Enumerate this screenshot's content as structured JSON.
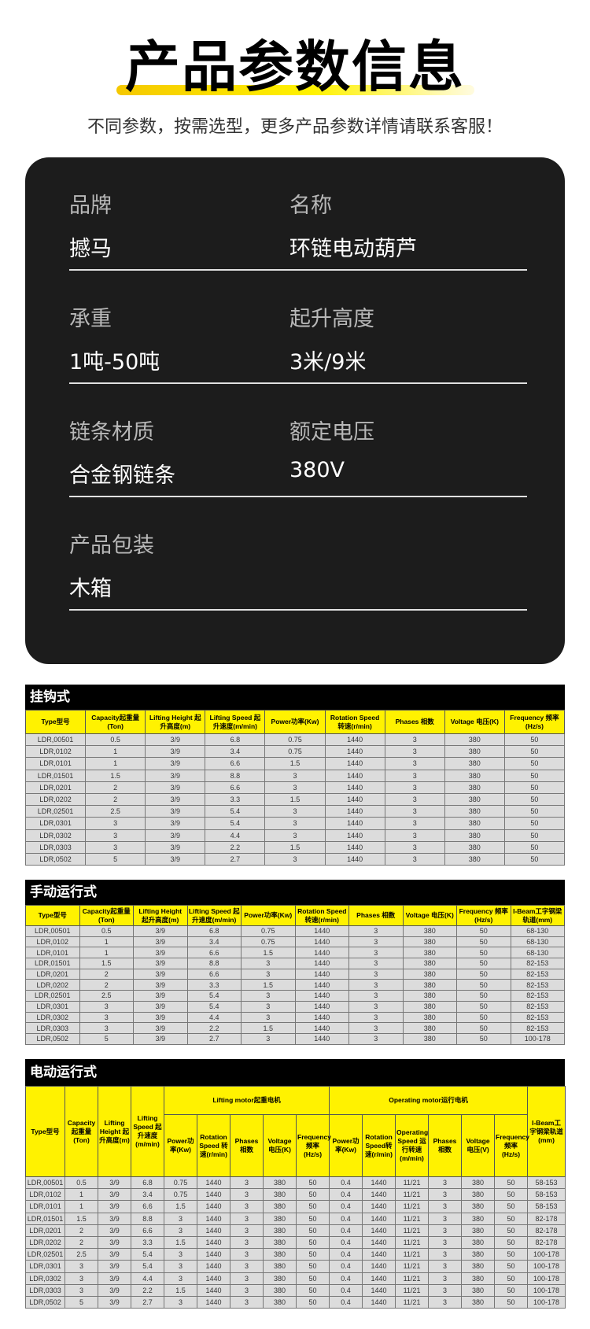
{
  "header": {
    "title": "产品参数信息",
    "subtitle": "不同参数，按需选型，更多产品参数详情请联系客服！"
  },
  "specs": [
    {
      "label": "品牌",
      "value": "撼马"
    },
    {
      "label": "名称",
      "value": "环链电动葫芦"
    },
    {
      "label": "承重",
      "value": "1吨-50吨"
    },
    {
      "label": "起升高度",
      "value": "3米/9米"
    },
    {
      "label": "链条材质",
      "value": "合金钢链条"
    },
    {
      "label": "额定电压",
      "value": "380V"
    },
    {
      "label": "产品包装",
      "value": "木箱"
    }
  ],
  "colors": {
    "accent": "#fff200",
    "card": "#1c1c1c"
  },
  "table1": {
    "title": "挂钩式",
    "headers": [
      "Type型号",
      "Capacity起重量(Ton)",
      "Lifting Height 起升高度(m)",
      "Lifting Speed 起升速度(m/min)",
      "Power功率(Kw)",
      "Rotation Speed 转速(r/min)",
      "Phases 相数",
      "Voltage 电压(K)",
      "Frequency 频率(Hz/s)"
    ],
    "rows": [
      [
        "LDR,00501",
        "0.5",
        "3/9",
        "6.8",
        "0.75",
        "1440",
        "3",
        "380",
        "50"
      ],
      [
        "LDR,0102",
        "1",
        "3/9",
        "3.4",
        "0.75",
        "1440",
        "3",
        "380",
        "50"
      ],
      [
        "LDR,0101",
        "1",
        "3/9",
        "6.6",
        "1.5",
        "1440",
        "3",
        "380",
        "50"
      ],
      [
        "LDR,01501",
        "1.5",
        "3/9",
        "8.8",
        "3",
        "1440",
        "3",
        "380",
        "50"
      ],
      [
        "LDR,0201",
        "2",
        "3/9",
        "6.6",
        "3",
        "1440",
        "3",
        "380",
        "50"
      ],
      [
        "LDR,0202",
        "2",
        "3/9",
        "3.3",
        "1.5",
        "1440",
        "3",
        "380",
        "50"
      ],
      [
        "LDR,02501",
        "2.5",
        "3/9",
        "5.4",
        "3",
        "1440",
        "3",
        "380",
        "50"
      ],
      [
        "LDR,0301",
        "3",
        "3/9",
        "5.4",
        "3",
        "1440",
        "3",
        "380",
        "50"
      ],
      [
        "LDR,0302",
        "3",
        "3/9",
        "4.4",
        "3",
        "1440",
        "3",
        "380",
        "50"
      ],
      [
        "LDR,0303",
        "3",
        "3/9",
        "2.2",
        "1.5",
        "1440",
        "3",
        "380",
        "50"
      ],
      [
        "LDR,0502",
        "5",
        "3/9",
        "2.7",
        "3",
        "1440",
        "3",
        "380",
        "50"
      ]
    ]
  },
  "table2": {
    "title": "手动运行式",
    "headers": [
      "Type型号",
      "Capacity起重量(Ton)",
      "Lifting Height 起升高度(m)",
      "Lifting Speed 起升速度(m/min)",
      "Power功率(Kw)",
      "Rotation Speed 转速(r/min)",
      "Phases 相数",
      "Voltage 电压(K)",
      "Frequency 频率(Hz/s)",
      "I-Beam工字钢梁轨道(mm)"
    ],
    "rows": [
      [
        "LDR,00501",
        "0.5",
        "3/9",
        "6.8",
        "0.75",
        "1440",
        "3",
        "380",
        "50",
        "68-130"
      ],
      [
        "LDR,0102",
        "1",
        "3/9",
        "3.4",
        "0.75",
        "1440",
        "3",
        "380",
        "50",
        "68-130"
      ],
      [
        "LDR,0101",
        "1",
        "3/9",
        "6.6",
        "1.5",
        "1440",
        "3",
        "380",
        "50",
        "68-130"
      ],
      [
        "LDR,01501",
        "1.5",
        "3/9",
        "8.8",
        "3",
        "1440",
        "3",
        "380",
        "50",
        "82-153"
      ],
      [
        "LDR,0201",
        "2",
        "3/9",
        "6.6",
        "3",
        "1440",
        "3",
        "380",
        "50",
        "82-153"
      ],
      [
        "LDR,0202",
        "2",
        "3/9",
        "3.3",
        "1.5",
        "1440",
        "3",
        "380",
        "50",
        "82-153"
      ],
      [
        "LDR,02501",
        "2.5",
        "3/9",
        "5.4",
        "3",
        "1440",
        "3",
        "380",
        "50",
        "82-153"
      ],
      [
        "LDR,0301",
        "3",
        "3/9",
        "5.4",
        "3",
        "1440",
        "3",
        "380",
        "50",
        "82-153"
      ],
      [
        "LDR,0302",
        "3",
        "3/9",
        "4.4",
        "3",
        "1440",
        "3",
        "380",
        "50",
        "82-153"
      ],
      [
        "LDR,0303",
        "3",
        "3/9",
        "2.2",
        "1.5",
        "1440",
        "3",
        "380",
        "50",
        "82-153"
      ],
      [
        "LDR,0502",
        "5",
        "3/9",
        "2.7",
        "3",
        "1440",
        "3",
        "380",
        "50",
        "100-178"
      ]
    ]
  },
  "table3": {
    "title": "电动运行式",
    "group_left": [
      "Type型号",
      "Capacity 起重量(Ton)",
      "Lifting Height 起升高度(m)",
      "Lifting Speed 起升速度(m/min)"
    ],
    "group_lifting": "Lifting motor起重电机",
    "group_operating": "Operating motor运行电机",
    "group_right": "I-Beam工字钢梁轨道(mm)",
    "lifting_headers": [
      "Power功率(Kw)",
      "Rotation Speed 转速(r/min)",
      "Phases 相数",
      "Voltage 电压(K)",
      "Frequency 频率(Hz/s)"
    ],
    "operating_headers": [
      "Power功率(Kw)",
      "Rotation Speed转速(r/min)",
      "Operating Speed 运行转速(m/min)",
      "Phases 相数",
      "Voltage 电压(V)",
      "Frequency 频率(Hz/s)"
    ],
    "rows": [
      [
        "LDR,00501",
        "0.5",
        "3/9",
        "6.8",
        "0.75",
        "1440",
        "3",
        "380",
        "50",
        "0.4",
        "1440",
        "11/21",
        "3",
        "380",
        "50",
        "58-153"
      ],
      [
        "LDR,0102",
        "1",
        "3/9",
        "3.4",
        "0.75",
        "1440",
        "3",
        "380",
        "50",
        "0.4",
        "1440",
        "11/21",
        "3",
        "380",
        "50",
        "58-153"
      ],
      [
        "LDR,0101",
        "1",
        "3/9",
        "6.6",
        "1.5",
        "1440",
        "3",
        "380",
        "50",
        "0.4",
        "1440",
        "11/21",
        "3",
        "380",
        "50",
        "58-153"
      ],
      [
        "LDR,01501",
        "1.5",
        "3/9",
        "8.8",
        "3",
        "1440",
        "3",
        "380",
        "50",
        "0.4",
        "1440",
        "11/21",
        "3",
        "380",
        "50",
        "82-178"
      ],
      [
        "LDR,0201",
        "2",
        "3/9",
        "6.6",
        "3",
        "1440",
        "3",
        "380",
        "50",
        "0.4",
        "1440",
        "11/21",
        "3",
        "380",
        "50",
        "82-178"
      ],
      [
        "LDR,0202",
        "2",
        "3/9",
        "3.3",
        "1.5",
        "1440",
        "3",
        "380",
        "50",
        "0.4",
        "1440",
        "11/21",
        "3",
        "380",
        "50",
        "82-178"
      ],
      [
        "LDR,02501",
        "2.5",
        "3/9",
        "5.4",
        "3",
        "1440",
        "3",
        "380",
        "50",
        "0.4",
        "1440",
        "11/21",
        "3",
        "380",
        "50",
        "100-178"
      ],
      [
        "LDR,0301",
        "3",
        "3/9",
        "5.4",
        "3",
        "1440",
        "3",
        "380",
        "50",
        "0.4",
        "1440",
        "11/21",
        "3",
        "380",
        "50",
        "100-178"
      ],
      [
        "LDR,0302",
        "3",
        "3/9",
        "4.4",
        "3",
        "1440",
        "3",
        "380",
        "50",
        "0.4",
        "1440",
        "11/21",
        "3",
        "380",
        "50",
        "100-178"
      ],
      [
        "LDR,0303",
        "3",
        "3/9",
        "2.2",
        "1.5",
        "1440",
        "3",
        "380",
        "50",
        "0.4",
        "1440",
        "11/21",
        "3",
        "380",
        "50",
        "100-178"
      ],
      [
        "LDR,0502",
        "5",
        "3/9",
        "2.7",
        "3",
        "1440",
        "3",
        "380",
        "50",
        "0.4",
        "1440",
        "11/21",
        "3",
        "380",
        "50",
        "100-178"
      ]
    ]
  }
}
